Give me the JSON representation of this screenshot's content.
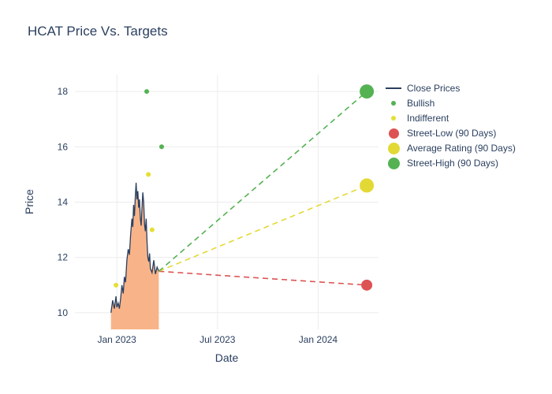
{
  "chart_data": {
    "type": "line",
    "title": "HCAT Price Vs. Targets",
    "xlabel": "Date",
    "ylabel": "Price",
    "x_unit": "months since Jan 2023",
    "x_range": [
      -2.5,
      15.6
    ],
    "y_range": [
      9.4,
      18.6
    ],
    "grid": true,
    "legend_position": "right",
    "x_ticks": [
      {
        "pos": 0,
        "label": "Jan 2023"
      },
      {
        "pos": 6,
        "label": "Jul 2023"
      },
      {
        "pos": 12,
        "label": "Jan 2024"
      }
    ],
    "y_ticks": [
      10,
      12,
      14,
      16,
      18
    ],
    "series": {
      "close": {
        "name": "Close Prices",
        "color": "#2a3f5f",
        "fill_color": "#f8b488",
        "x": [
          -0.35,
          -0.25,
          -0.15,
          -0.05,
          0.0,
          0.08,
          0.15,
          0.22,
          0.3,
          0.38,
          0.45,
          0.52,
          0.6,
          0.68,
          0.75,
          0.82,
          0.9,
          0.95,
          1.0,
          1.05,
          1.1,
          1.15,
          1.2,
          1.25,
          1.3,
          1.35,
          1.4,
          1.45,
          1.5,
          1.55,
          1.6,
          1.65,
          1.7,
          1.75,
          1.8,
          1.85,
          1.9,
          1.95,
          2.0,
          2.1,
          2.2,
          2.3,
          2.4,
          2.5
        ],
        "y": [
          10.0,
          10.45,
          10.15,
          10.6,
          10.2,
          10.35,
          10.15,
          10.5,
          11.0,
          10.7,
          11.3,
          11.1,
          11.9,
          12.3,
          12.1,
          12.8,
          13.4,
          13.1,
          13.9,
          13.5,
          14.2,
          14.7,
          14.1,
          14.4,
          13.8,
          14.1,
          13.4,
          13.15,
          13.8,
          14.35,
          14.0,
          13.2,
          12.95,
          13.4,
          12.55,
          12.0,
          11.85,
          12.15,
          11.6,
          11.45,
          11.9,
          11.4,
          11.65,
          11.5
        ]
      },
      "bullish": {
        "name": "Bullish",
        "color": "#54b253",
        "marker_size": 3,
        "points": [
          [
            1.78,
            18.0
          ],
          [
            2.67,
            16.0
          ]
        ]
      },
      "indifferent": {
        "name": "Indifferent",
        "color": "#e3e035",
        "marker_size": 3,
        "points": [
          [
            -0.05,
            11.0
          ],
          [
            1.88,
            15.0
          ],
          [
            2.1,
            13.0
          ]
        ]
      },
      "street_low": {
        "name": "Street-Low (90 Days)",
        "color": "#dd5353",
        "dash": true,
        "marker_size": 7,
        "line": [
          [
            2.5,
            11.5
          ],
          [
            14.9,
            11.0
          ]
        ]
      },
      "average": {
        "name": "Average Rating (90 Days)",
        "color": "#e3d935",
        "dash": true,
        "marker_size": 9,
        "line": [
          [
            2.5,
            11.5
          ],
          [
            14.9,
            14.6
          ]
        ]
      },
      "street_high": {
        "name": "Street-High (90 Days)",
        "color": "#54b253",
        "dash": true,
        "marker_size": 9,
        "line": [
          [
            2.5,
            11.5
          ],
          [
            14.9,
            18.0
          ]
        ]
      }
    },
    "legend": [
      {
        "label": "Close Prices",
        "type": "line",
        "color": "#2a3f5f",
        "size": 2
      },
      {
        "label": "Bullish",
        "type": "dot",
        "color": "#54b253",
        "size": 6
      },
      {
        "label": "Indifferent",
        "type": "dot",
        "color": "#e3e035",
        "size": 6
      },
      {
        "label": "Street-Low (90 Days)",
        "type": "dot",
        "color": "#dd5353",
        "size": 13
      },
      {
        "label": "Average Rating (90 Days)",
        "type": "dot",
        "color": "#e3d935",
        "size": 15
      },
      {
        "label": "Street-High (90 Days)",
        "type": "dot",
        "color": "#54b253",
        "size": 15
      }
    ],
    "colors": {
      "title_text": "#2a3f5f",
      "tick_text": "#2a3f5f",
      "grid": "#ececec",
      "plot_background": "#ffffff"
    }
  }
}
